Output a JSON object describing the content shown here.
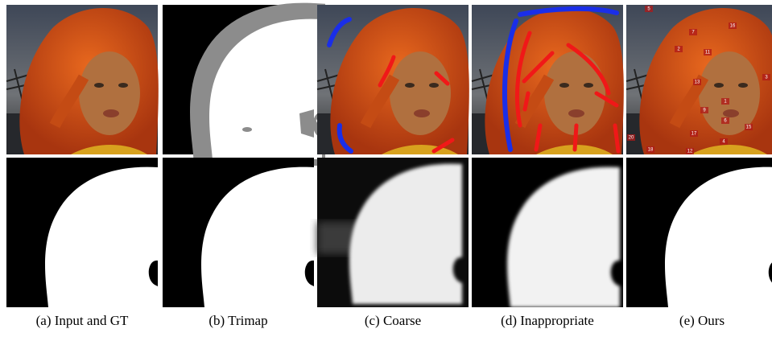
{
  "captions": [
    "(a) Input and GT",
    "(b) Trimap",
    "(c) Coarse",
    "(d) Inappropriate",
    "(e) Ours"
  ],
  "point_labels": [
    "5",
    "7",
    "16",
    "2",
    "11",
    "3",
    "13",
    "1",
    "9",
    "6",
    "15",
    "17",
    "4",
    "20",
    "12",
    "18"
  ]
}
